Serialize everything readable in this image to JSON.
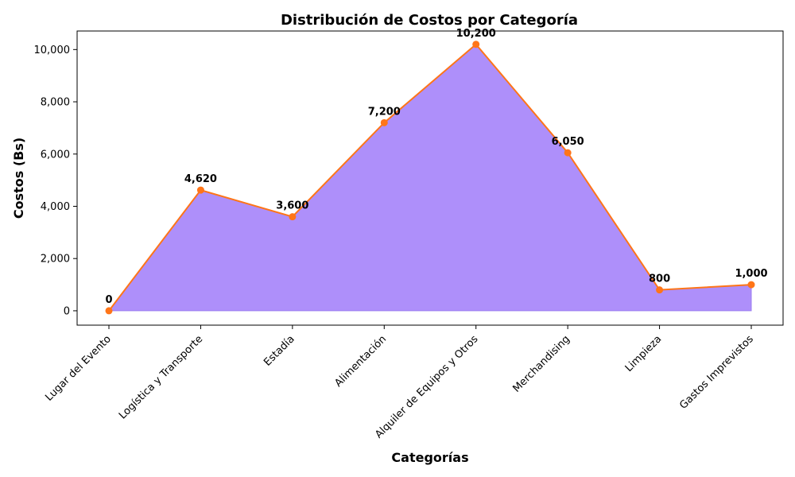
{
  "chart_data": {
    "type": "area",
    "title": "Distribución de Costos por Categoría",
    "xlabel": "Categorías",
    "ylabel": "Costos (Bs)",
    "categories": [
      "Lugar del Evento",
      "Logística y Transporte",
      "Estadía",
      "Alimentación",
      "Alquiler de Equipos y Otros",
      "Merchandising",
      "Limpieza",
      "Gastos Imprevistos"
    ],
    "values": [
      0,
      4620,
      3600,
      7200,
      10200,
      6050,
      800,
      1000
    ],
    "data_labels": [
      "0",
      "4,620",
      "3,600",
      "7,200",
      "10,200",
      "6,050",
      "800",
      "1,000"
    ],
    "yticks": [
      0,
      2000,
      4000,
      6000,
      8000,
      10000
    ],
    "ytick_labels": [
      "0",
      "2,000",
      "4,000",
      "6,000",
      "8,000",
      "10,000"
    ],
    "ylim": [
      -550,
      10710
    ],
    "grid": false,
    "fill_color": "#ae8ffa",
    "line_color": "#ff7518",
    "marker_color": "#ff7518"
  }
}
